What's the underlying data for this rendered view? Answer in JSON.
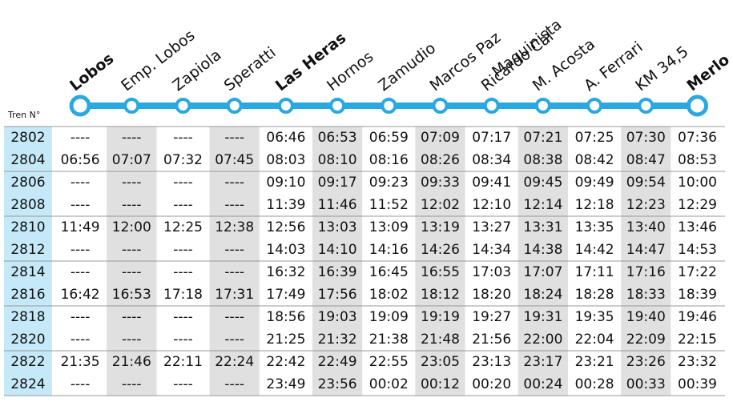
{
  "header": {
    "train_label": "Tren N°"
  },
  "stations": [
    {
      "lines": [
        "Lobos"
      ],
      "bold": true
    },
    {
      "lines": [
        "Emp. Lobos"
      ],
      "bold": false
    },
    {
      "lines": [
        "Zapiola"
      ],
      "bold": false
    },
    {
      "lines": [
        "Speratti"
      ],
      "bold": false
    },
    {
      "lines": [
        "Las Heras"
      ],
      "bold": true
    },
    {
      "lines": [
        "Hornos"
      ],
      "bold": false
    },
    {
      "lines": [
        "Zamudio"
      ],
      "bold": false
    },
    {
      "lines": [
        "Marcos Paz"
      ],
      "bold": false
    },
    {
      "lines": [
        "Maquinista",
        "Ricardo Cal"
      ],
      "bold": false
    },
    {
      "lines": [
        "M. Acosta"
      ],
      "bold": false
    },
    {
      "lines": [
        "A. Ferrari"
      ],
      "bold": false
    },
    {
      "lines": [
        "KM 34,5"
      ],
      "bold": false
    },
    {
      "lines": [
        "Merlo"
      ],
      "bold": true
    }
  ],
  "table": {
    "rows": [
      [
        "2802",
        "----",
        "----",
        "----",
        "----",
        "06:46",
        "06:53",
        "06:59",
        "07:09",
        "07:17",
        "07:21",
        "07:25",
        "07:30",
        "07:36"
      ],
      [
        "2804",
        "06:56",
        "07:07",
        "07:32",
        "07:45",
        "08:03",
        "08:10",
        "08:16",
        "08:26",
        "08:34",
        "08:38",
        "08:42",
        "08:47",
        "08:53"
      ],
      [
        "2806",
        "----",
        "----",
        "----",
        "----",
        "09:10",
        "09:17",
        "09:23",
        "09:33",
        "09:41",
        "09:45",
        "09:49",
        "09:54",
        "10:00"
      ],
      [
        "2808",
        "----",
        "----",
        "----",
        "----",
        "11:39",
        "11:46",
        "11:52",
        "12:02",
        "12:10",
        "12:14",
        "12:18",
        "12:23",
        "12:29"
      ],
      [
        "2810",
        "11:49",
        "12:00",
        "12:25",
        "12:38",
        "12:56",
        "13:03",
        "13:09",
        "13:19",
        "13:27",
        "13:31",
        "13:35",
        "13:40",
        "13:46"
      ],
      [
        "2812",
        "----",
        "----",
        "----",
        "----",
        "14:03",
        "14:10",
        "14:16",
        "14:26",
        "14:34",
        "14:38",
        "14:42",
        "14:47",
        "14:53"
      ],
      [
        "2814",
        "----",
        "----",
        "----",
        "----",
        "16:32",
        "16:39",
        "16:45",
        "16:55",
        "17:03",
        "17:07",
        "17:11",
        "17:16",
        "17:22"
      ],
      [
        "2816",
        "16:42",
        "16:53",
        "17:18",
        "17:31",
        "17:49",
        "17:56",
        "18:02",
        "18:12",
        "18:20",
        "18:24",
        "18:28",
        "18:33",
        "18:39"
      ],
      [
        "2818",
        "----",
        "----",
        "----",
        "----",
        "18:56",
        "19:03",
        "19:09",
        "19:19",
        "19:27",
        "19:31",
        "19:35",
        "19:40",
        "19:46"
      ],
      [
        "2820",
        "----",
        "----",
        "----",
        "----",
        "21:25",
        "21:32",
        "21:38",
        "21:48",
        "21:56",
        "22:00",
        "22:04",
        "22:09",
        "22:15"
      ],
      [
        "2822",
        "21:35",
        "21:46",
        "22:11",
        "22:24",
        "22:42",
        "22:49",
        "22:55",
        "23:05",
        "23:13",
        "23:17",
        "23:21",
        "23:26",
        "23:32"
      ],
      [
        "2824",
        "----",
        "----",
        "----",
        "----",
        "23:49",
        "23:56",
        "00:02",
        "00:12",
        "00:20",
        "00:24",
        "00:28",
        "00:33",
        "00:39"
      ]
    ]
  }
}
